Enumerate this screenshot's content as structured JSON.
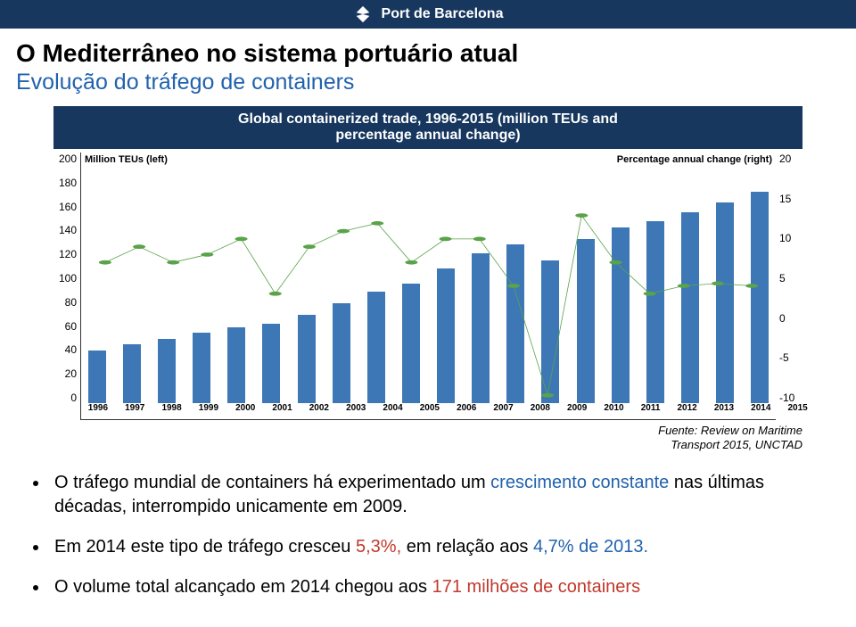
{
  "header": {
    "brand": "Port de Barcelona"
  },
  "title": {
    "main": "O Mediterrâneo no sistema portuário atual",
    "sub": "Evolução do tráfego de containers"
  },
  "chart": {
    "caption_line1": "Global containerized trade, 1996-2015 (million TEUs and",
    "caption_line2": "percentage annual change)",
    "legend_left": "Million TEUs (left)",
    "legend_right": "Percentage annual change (right)",
    "type": "bar+line",
    "categories": [
      "1996",
      "1997",
      "1998",
      "1999",
      "2000",
      "2001",
      "2002",
      "2003",
      "2004",
      "2005",
      "2006",
      "2007",
      "2008",
      "2009",
      "2010",
      "2011",
      "2012",
      "2013",
      "2014",
      "2015"
    ],
    "bar_values": [
      45,
      50,
      55,
      60,
      65,
      68,
      75,
      85,
      95,
      102,
      115,
      128,
      135,
      122,
      140,
      150,
      155,
      163,
      171,
      180
    ],
    "line_values": [
      8,
      10,
      8,
      9,
      11,
      4,
      10,
      12,
      13,
      8,
      11,
      11,
      5,
      -9,
      14,
      8,
      4,
      5,
      5.3,
      5
    ],
    "y_left": {
      "min": 0,
      "max": 200,
      "ticks": [
        200,
        180,
        160,
        140,
        120,
        100,
        80,
        60,
        40,
        20,
        0
      ]
    },
    "y_right": {
      "min": -10,
      "max": 20,
      "ticks": [
        20,
        15,
        10,
        5,
        0,
        -5,
        -10
      ]
    },
    "bar_color": "#3d77b5",
    "line_color": "#5aa34a",
    "marker_color": "#5aa34a",
    "background": "#ffffff"
  },
  "source": {
    "line1": "Fuente: Review on Maritime",
    "line2": "Transport 2015, UNCTAD"
  },
  "bullets": {
    "b1_a": "O tráfego mundial de containers há experimentado um ",
    "b1_hl": "crescimento constante",
    "b1_b": " nas últimas décadas, interrompido unicamente em  2009.",
    "b2_a": "Em 2014 este tipo de tráfego cresceu  ",
    "b2_hl1": "5,3%,",
    "b2_b": "  em relação  aos  ",
    "b2_hl2": "4,7% de 2013.",
    "b3_a": "O volume total alcançado em 2014 chegou aos ",
    "b3_hl": "171 milhões de containers"
  }
}
